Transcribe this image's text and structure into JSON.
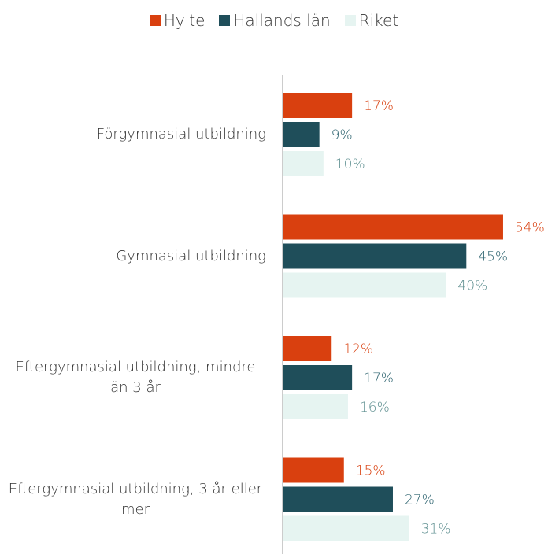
{
  "chart_data": {
    "type": "hbar",
    "categories": [
      "Förgymnasial utbildning",
      "Gymnasial utbildning",
      "Eftergymnasial utbildning, mindre än 3 år",
      "Eftergymnasial utbildning, 3 år eller mer"
    ],
    "series": [
      {
        "name": "Hylte",
        "color": "#d9400f",
        "label_color": "#d9400f",
        "values": [
          17,
          54,
          12,
          15
        ],
        "value_labels": [
          "17%",
          "54%",
          "12%",
          "15%"
        ]
      },
      {
        "name": "Hallands län",
        "color": "#1f4e5a",
        "label_color": "#2e6470",
        "values": [
          9,
          45,
          17,
          27
        ],
        "value_labels": [
          "9%",
          "45%",
          "17%",
          "27%"
        ]
      },
      {
        "name": "Riket",
        "color": "#e6f4f1",
        "label_color": "#5e8f90",
        "values": [
          10,
          40,
          16,
          31
        ],
        "value_labels": [
          "10%",
          "40%",
          "16%",
          "31%"
        ]
      }
    ],
    "xlim": [
      0,
      65
    ],
    "legend": "top"
  }
}
